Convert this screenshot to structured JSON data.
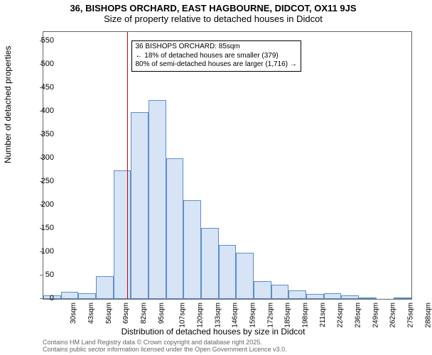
{
  "title": {
    "line1": "36, BISHOPS ORCHARD, EAST HAGBOURNE, DIDCOT, OX11 9JS",
    "line2": "Size of property relative to detached houses in Didcot"
  },
  "axes": {
    "ylabel": "Number of detached properties",
    "xlabel": "Distribution of detached houses by size in Didcot",
    "ylim": [
      0,
      570
    ],
    "ytick_step": 50,
    "yticks": [
      0,
      50,
      100,
      150,
      200,
      250,
      300,
      350,
      400,
      450,
      500,
      550
    ],
    "x_categories": [
      "30sqm",
      "43sqm",
      "56sqm",
      "69sqm",
      "82sqm",
      "95sqm",
      "107sqm",
      "120sqm",
      "133sqm",
      "146sqm",
      "159sqm",
      "172sqm",
      "185sqm",
      "198sqm",
      "211sqm",
      "224sqm",
      "236sqm",
      "249sqm",
      "262sqm",
      "275sqm",
      "288sqm"
    ]
  },
  "chart": {
    "type": "histogram",
    "values": [
      8,
      15,
      12,
      48,
      275,
      398,
      424,
      300,
      210,
      152,
      115,
      98,
      38,
      30,
      18,
      10,
      12,
      7,
      3,
      0,
      2
    ],
    "bar_fill": "#d6e4f5",
    "bar_border": "#5b8fc7",
    "background_color": "#ffffff",
    "plot_border_color": "#666666",
    "bar_width_ratio": 1.0
  },
  "reference": {
    "value_sqm": 85,
    "line_color": "#cc0000",
    "info_lines": [
      "36 BISHOPS ORCHARD: 85sqm",
      "← 18% of detached houses are smaller (379)",
      "80% of semi-detached houses are larger (1,716) →"
    ],
    "info_box_border": "#000000",
    "info_box_bg": "#ffffff",
    "info_fontsize": 10
  },
  "footer": {
    "line1": "Contains HM Land Registry data © Crown copyright and database right 2025.",
    "line2": "Contains public sector information licensed under the Open Government Licence v3.0."
  },
  "style": {
    "title_fontsize": 13,
    "label_fontsize": 12,
    "tick_fontsize": 11,
    "xtick_fontsize": 10,
    "footer_fontsize": 9,
    "footer_color": "#666666"
  }
}
